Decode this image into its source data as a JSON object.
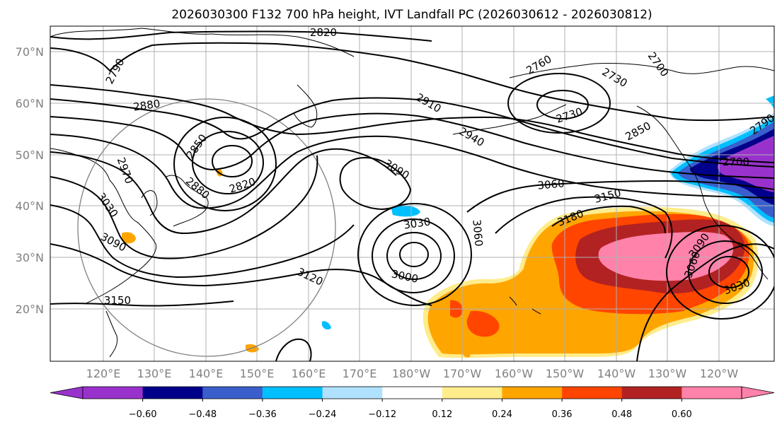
{
  "title": "2026030300 F132 700 hPa height, IVT Landfall PC (2026030612 - 2026030812)",
  "map": {
    "lat_ticks": [
      "70°N",
      "60°N",
      "50°N",
      "40°N",
      "30°N",
      "20°N"
    ],
    "lon_ticks": [
      "120°E",
      "130°E",
      "140°E",
      "150°E",
      "160°E",
      "170°E",
      "180°W",
      "170°W",
      "160°W",
      "150°W",
      "140°W",
      "130°W",
      "120°W"
    ],
    "contour_labels": [
      "2820",
      "2790",
      "2880",
      "2850",
      "2880",
      "2820",
      "2970",
      "3030",
      "3090",
      "3150",
      "2910",
      "2940",
      "3090",
      "2760",
      "2730",
      "2730",
      "2700",
      "2850",
      "2790",
      "3060",
      "3030",
      "3000",
      "3060",
      "3150",
      "3180",
      "3120",
      "3090",
      "3060",
      "3030",
      "2700"
    ],
    "colors": {
      "contour": "#000000",
      "grid": "#b0b0b0",
      "circle": "#808080",
      "coast": "#000000"
    }
  },
  "colorbar": {
    "ticks": [
      "−0.60",
      "−0.48",
      "−0.36",
      "−0.24",
      "−0.12",
      "0.12",
      "0.24",
      "0.36",
      "0.48",
      "0.60"
    ],
    "colors": [
      "#9932cc",
      "#00008b",
      "#3a5fcd",
      "#00bfff",
      "#b0e2ff",
      "#ffffff",
      "#ffec8b",
      "#ffa500",
      "#ff4500",
      "#b22222",
      "#ff82ab",
      "#ff82ab"
    ]
  }
}
